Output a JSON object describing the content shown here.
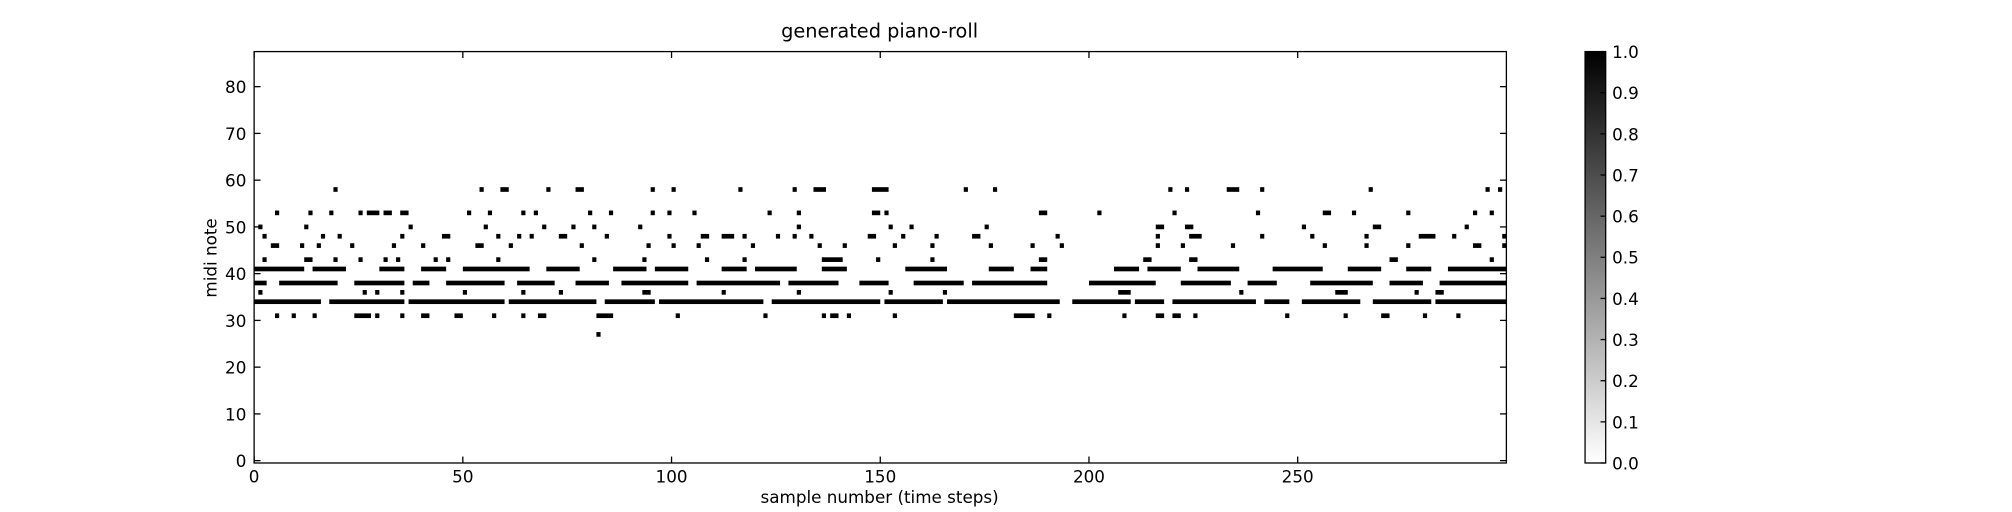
{
  "chart_data": {
    "type": "heatmap",
    "title": "generated piano-roll",
    "x_label": "sample number (time steps)",
    "y_label": "midi note",
    "xlim": [
      0,
      300
    ],
    "xticks": [
      0,
      50,
      100,
      150,
      200,
      250
    ],
    "ylim": [
      -0.5,
      87.5
    ],
    "yticks": [
      0,
      10,
      20,
      30,
      40,
      50,
      60,
      70,
      80
    ],
    "cmap": [
      "#ffffff",
      "#000000"
    ],
    "clim": [
      0,
      1
    ],
    "cticks": [
      {
        "value": 0,
        "label": "0.0"
      },
      {
        "value": 0.1,
        "label": "0.1"
      },
      {
        "value": 0.2,
        "label": "0.2"
      },
      {
        "value": 0.3,
        "label": "0.3"
      },
      {
        "value": 0.4,
        "label": "0.4"
      },
      {
        "value": 0.5,
        "label": "0.5"
      },
      {
        "value": 0.6,
        "label": "0.6"
      },
      {
        "value": 0.7,
        "label": "0.7"
      },
      {
        "value": 0.8,
        "label": "0.8"
      },
      {
        "value": 0.9,
        "label": "0.9"
      },
      {
        "value": 1,
        "label": "1.0"
      }
    ],
    "notes": [
      {
        "pitch": 34,
        "value": 1,
        "runs": [
          [
            0,
            16
          ],
          [
            18,
            36
          ],
          [
            37,
            60
          ],
          [
            61,
            82
          ],
          [
            84,
            96
          ],
          [
            97,
            122
          ],
          [
            124,
            150
          ],
          [
            151,
            165
          ],
          [
            166,
            193
          ],
          [
            196,
            210
          ],
          [
            211,
            218
          ],
          [
            220,
            240
          ],
          [
            242,
            248
          ],
          [
            251,
            265
          ],
          [
            268,
            282
          ],
          [
            283,
            300
          ]
        ]
      },
      {
        "pitch": 38,
        "value": 1,
        "runs": [
          [
            0,
            3
          ],
          [
            6,
            20
          ],
          [
            24,
            36
          ],
          [
            38,
            42
          ],
          [
            46,
            60
          ],
          [
            63,
            72
          ],
          [
            77,
            85
          ],
          [
            88,
            104
          ],
          [
            106,
            126
          ],
          [
            128,
            140
          ],
          [
            145,
            152
          ],
          [
            158,
            170
          ],
          [
            172,
            190
          ],
          [
            200,
            216
          ],
          [
            222,
            234
          ],
          [
            238,
            245
          ],
          [
            253,
            268
          ],
          [
            272,
            280
          ],
          [
            284,
            300
          ]
        ]
      },
      {
        "pitch": 41,
        "value": 1,
        "runs": [
          [
            0,
            12
          ],
          [
            14,
            22
          ],
          [
            30,
            36
          ],
          [
            40,
            46
          ],
          [
            50,
            66
          ],
          [
            70,
            78
          ],
          [
            86,
            94
          ],
          [
            96,
            104
          ],
          [
            112,
            118
          ],
          [
            120,
            130
          ],
          [
            136,
            142
          ],
          [
            156,
            166
          ],
          [
            176,
            182
          ],
          [
            186,
            190
          ],
          [
            206,
            212
          ],
          [
            214,
            222
          ],
          [
            226,
            236
          ],
          [
            244,
            256
          ],
          [
            262,
            270
          ],
          [
            276,
            282
          ],
          [
            286,
            300
          ]
        ]
      },
      {
        "pitch": 31,
        "value": 1,
        "runs": [
          [
            5,
            6
          ],
          [
            9,
            10
          ],
          [
            14,
            15
          ],
          [
            24,
            28
          ],
          [
            29,
            30
          ],
          [
            35,
            36
          ],
          [
            40,
            42
          ],
          [
            48,
            50
          ],
          [
            57,
            58
          ],
          [
            64,
            65
          ],
          [
            68,
            70
          ],
          [
            82,
            86
          ],
          [
            101,
            102
          ],
          [
            122,
            123
          ],
          [
            136,
            137
          ],
          [
            138,
            140
          ],
          [
            142,
            143
          ],
          [
            153,
            154
          ],
          [
            182,
            187
          ],
          [
            190,
            191
          ],
          [
            208,
            209
          ],
          [
            216,
            218
          ],
          [
            220,
            222
          ],
          [
            225,
            226
          ],
          [
            247,
            248
          ],
          [
            261,
            262
          ],
          [
            270,
            272
          ],
          [
            280,
            281
          ],
          [
            288,
            289
          ]
        ]
      },
      {
        "pitch": 36,
        "value": 1,
        "runs": [
          [
            1,
            2
          ],
          [
            26,
            27
          ],
          [
            29,
            30
          ],
          [
            35,
            36
          ],
          [
            50,
            51
          ],
          [
            64,
            65
          ],
          [
            73,
            74
          ],
          [
            93,
            95
          ],
          [
            112,
            113
          ],
          [
            130,
            131
          ],
          [
            152,
            153
          ],
          [
            165,
            166
          ],
          [
            207,
            210
          ],
          [
            236,
            237
          ],
          [
            259,
            262
          ],
          [
            278,
            279
          ],
          [
            283,
            285
          ]
        ]
      },
      {
        "pitch": 43,
        "value": 1,
        "runs": [
          [
            2,
            3
          ],
          [
            12,
            14
          ],
          [
            19,
            20
          ],
          [
            25,
            26
          ],
          [
            31,
            32
          ],
          [
            34,
            35
          ],
          [
            43,
            44
          ],
          [
            46,
            47
          ],
          [
            58,
            59
          ],
          [
            81,
            82
          ],
          [
            93,
            94
          ],
          [
            108,
            109
          ],
          [
            117,
            118
          ],
          [
            136,
            141
          ],
          [
            149,
            150
          ],
          [
            162,
            163
          ],
          [
            188,
            190
          ],
          [
            213,
            215
          ],
          [
            224,
            226
          ],
          [
            272,
            274
          ],
          [
            296,
            297
          ]
        ]
      },
      {
        "pitch": 46,
        "value": 1,
        "runs": [
          [
            4,
            6
          ],
          [
            11,
            12
          ],
          [
            15,
            16
          ],
          [
            23,
            24
          ],
          [
            33,
            34
          ],
          [
            40,
            41
          ],
          [
            53,
            55
          ],
          [
            61,
            62
          ],
          [
            78,
            79
          ],
          [
            94,
            95
          ],
          [
            100,
            101
          ],
          [
            106,
            107
          ],
          [
            119,
            120
          ],
          [
            135,
            136
          ],
          [
            141,
            142
          ],
          [
            153,
            154
          ],
          [
            162,
            163
          ],
          [
            176,
            177
          ],
          [
            186,
            187
          ],
          [
            193,
            194
          ],
          [
            216,
            217
          ],
          [
            222,
            223
          ],
          [
            234,
            235
          ],
          [
            256,
            257
          ],
          [
            266,
            267
          ],
          [
            276,
            277
          ],
          [
            292,
            294
          ],
          [
            299,
            300
          ]
        ]
      },
      {
        "pitch": 48,
        "value": 1,
        "runs": [
          [
            2,
            3
          ],
          [
            16,
            17
          ],
          [
            20,
            21
          ],
          [
            35,
            36
          ],
          [
            45,
            47
          ],
          [
            58,
            59
          ],
          [
            63,
            64
          ],
          [
            66,
            67
          ],
          [
            73,
            75
          ],
          [
            84,
            85
          ],
          [
            99,
            100
          ],
          [
            107,
            109
          ],
          [
            112,
            115
          ],
          [
            117,
            118
          ],
          [
            125,
            126
          ],
          [
            129,
            130
          ],
          [
            133,
            134
          ],
          [
            147,
            149
          ],
          [
            155,
            156
          ],
          [
            163,
            164
          ],
          [
            172,
            174
          ],
          [
            192,
            193
          ],
          [
            216,
            217
          ],
          [
            224,
            227
          ],
          [
            241,
            242
          ],
          [
            253,
            254
          ],
          [
            266,
            267
          ],
          [
            279,
            283
          ],
          [
            287,
            288
          ],
          [
            299,
            300
          ]
        ]
      },
      {
        "pitch": 50,
        "value": 1,
        "runs": [
          [
            1,
            2
          ],
          [
            12,
            13
          ],
          [
            37,
            38
          ],
          [
            55,
            56
          ],
          [
            69,
            70
          ],
          [
            76,
            77
          ],
          [
            81,
            82
          ],
          [
            92,
            93
          ],
          [
            130,
            131
          ],
          [
            152,
            153
          ],
          [
            157,
            158
          ],
          [
            175,
            176
          ],
          [
            216,
            218
          ],
          [
            223,
            225
          ],
          [
            251,
            252
          ],
          [
            268,
            270
          ],
          [
            290,
            291
          ]
        ]
      },
      {
        "pitch": 53,
        "value": 1,
        "runs": [
          [
            5,
            6
          ],
          [
            13,
            14
          ],
          [
            18,
            19
          ],
          [
            25,
            26
          ],
          [
            27,
            30
          ],
          [
            31,
            33
          ],
          [
            35,
            37
          ],
          [
            51,
            52
          ],
          [
            56,
            57
          ],
          [
            64,
            65
          ],
          [
            67,
            68
          ],
          [
            80,
            81
          ],
          [
            85,
            86
          ],
          [
            95,
            96
          ],
          [
            99,
            100
          ],
          [
            105,
            106
          ],
          [
            123,
            124
          ],
          [
            130,
            131
          ],
          [
            148,
            150
          ],
          [
            151,
            152
          ],
          [
            188,
            190
          ],
          [
            202,
            203
          ],
          [
            220,
            221
          ],
          [
            240,
            241
          ],
          [
            256,
            258
          ],
          [
            263,
            264
          ],
          [
            276,
            277
          ],
          [
            292,
            293
          ],
          [
            296,
            297
          ]
        ]
      },
      {
        "pitch": 58,
        "value": 1,
        "runs": [
          [
            19,
            20
          ],
          [
            54,
            55
          ],
          [
            59,
            61
          ],
          [
            70,
            71
          ],
          [
            77,
            79
          ],
          [
            95,
            96
          ],
          [
            100,
            101
          ],
          [
            116,
            117
          ],
          [
            129,
            130
          ],
          [
            134,
            137
          ],
          [
            148,
            152
          ],
          [
            170,
            171
          ],
          [
            177,
            178
          ],
          [
            219,
            220
          ],
          [
            223,
            224
          ],
          [
            233,
            236
          ],
          [
            241,
            242
          ],
          [
            267,
            268
          ],
          [
            295,
            296
          ],
          [
            298,
            299
          ]
        ]
      },
      {
        "pitch": 27,
        "value": 1,
        "runs": [
          [
            82,
            83
          ]
        ]
      }
    ]
  }
}
